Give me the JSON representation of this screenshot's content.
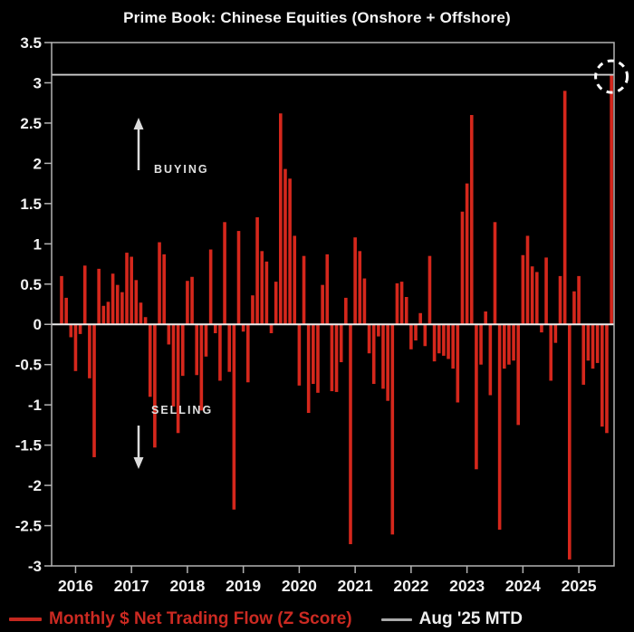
{
  "title": "Prime Book: Chinese Equities (Onshore + Offshore)",
  "legend": {
    "series_label": "Monthly $ Net Trading Flow (Z Score)",
    "series_color": "#cc2a22",
    "mtd_label": "Aug '25 MTD",
    "mtd_color": "#c9c9c9"
  },
  "chart_data": {
    "type": "bar",
    "title": "Prime Book: Chinese Equities (Onshore + Offshore)",
    "ylabel": "Monthly $ Net Trading Flow (Z Score)",
    "ylim": [
      -3,
      3.5
    ],
    "grid": false,
    "bar_color": "#d5271c",
    "frame_color": "#b3b3b3",
    "x_start_month": "2015-10",
    "x_end_month": "2025-08",
    "x_tick_labels": [
      "2016",
      "2017",
      "2018",
      "2019",
      "2020",
      "2021",
      "2022",
      "2023",
      "2024",
      "2025"
    ],
    "x_tick_indices": [
      3,
      15,
      27,
      39,
      51,
      63,
      75,
      87,
      99,
      111
    ],
    "y_tick_values": [
      3.5,
      3,
      2.5,
      2,
      1.5,
      1,
      0.5,
      0,
      -0.5,
      -1,
      -1.5,
      -2,
      -2.5,
      -3
    ],
    "y_tick_labels": [
      "3.5",
      "3",
      "2.5",
      "2",
      "1.5",
      "1",
      "0.5",
      "0",
      "-0.5",
      "-1",
      "-1.5",
      "-2",
      "-2.5",
      "-3"
    ],
    "values": [
      0.6,
      0.33,
      -0.16,
      -0.58,
      -0.12,
      0.73,
      -0.67,
      -1.65,
      0.69,
      0.23,
      0.28,
      0.63,
      0.49,
      0.4,
      0.89,
      0.84,
      0.55,
      0.27,
      0.09,
      -0.9,
      -1.53,
      1.02,
      0.87,
      -0.25,
      -1.02,
      -1.35,
      -0.64,
      0.54,
      0.59,
      -0.63,
      -1.07,
      -0.4,
      0.93,
      -0.11,
      -0.7,
      1.27,
      -0.59,
      -2.3,
      1.16,
      -0.09,
      -0.72,
      0.36,
      1.33,
      0.91,
      0.78,
      -0.11,
      0.53,
      2.62,
      1.93,
      1.81,
      1.1,
      -0.76,
      0.85,
      -1.1,
      -0.74,
      -0.85,
      0.49,
      0.87,
      -0.83,
      -0.84,
      -0.47,
      0.33,
      -2.73,
      1.08,
      0.91,
      0.57,
      -0.36,
      -0.74,
      -0.15,
      -0.8,
      -0.95,
      -2.61,
      0.51,
      0.53,
      0.34,
      -0.31,
      -0.2,
      0.14,
      -0.27,
      0.85,
      -0.46,
      -0.36,
      -0.39,
      -0.43,
      -0.55,
      -0.97,
      1.4,
      1.75,
      2.6,
      -1.8,
      -0.5,
      0.16,
      -0.88,
      1.27,
      -2.55,
      -0.55,
      -0.5,
      -0.45,
      -1.25,
      0.86,
      1.1,
      0.72,
      0.65,
      -0.1,
      0.83,
      -0.7,
      -0.23,
      0.6,
      2.9,
      -2.92,
      0.41,
      0.6,
      -0.75,
      -0.45,
      -0.55,
      -0.48,
      -1.27,
      -1.35,
      3.1
    ],
    "reference_line": {
      "label": "Aug '25 MTD",
      "value": 3.1,
      "color": "#cfcfcf"
    },
    "highlight": {
      "index": 118,
      "style": "dashed-circle",
      "color": "#ffffff"
    },
    "annotations": [
      {
        "text": "BUYING",
        "direction": "up"
      },
      {
        "text": "SELLING",
        "direction": "down"
      }
    ],
    "legend_position": "bottom"
  }
}
